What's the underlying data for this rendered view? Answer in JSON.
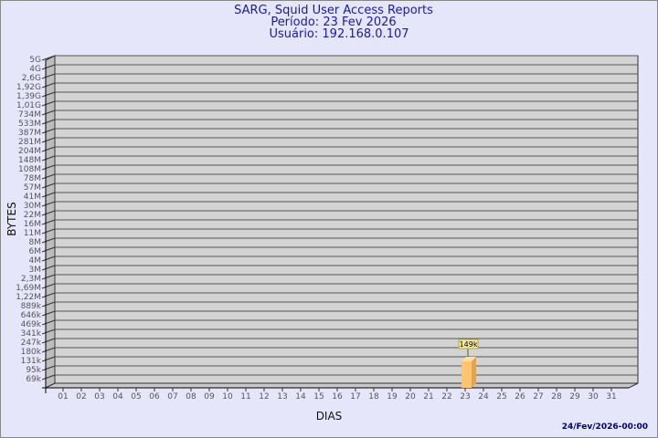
{
  "header": {
    "title": "SARG, Squid User Access Reports",
    "period": "Período: 23 Fev 2026",
    "user": "Usuário: 192.168.0.107"
  },
  "footer": {
    "timestamp": "24/Fev/2026-00:00"
  },
  "colors": {
    "background": "#e6e6fa",
    "plot_wall": "#d3d3d3",
    "bar": "#ffc56e",
    "title": "#1a1aa6"
  },
  "chart_data": {
    "type": "bar",
    "xlabel": "DIAS",
    "ylabel": "BYTES",
    "y_scale": "log",
    "grid": true,
    "categories": [
      "01",
      "02",
      "03",
      "04",
      "05",
      "06",
      "07",
      "08",
      "09",
      "10",
      "11",
      "12",
      "13",
      "14",
      "15",
      "16",
      "17",
      "18",
      "19",
      "20",
      "21",
      "22",
      "23",
      "24",
      "25",
      "26",
      "27",
      "28",
      "29",
      "30",
      "31"
    ],
    "ytick_labels": [
      "5G",
      "4G",
      "2,6G",
      "1,92G",
      "1,39G",
      "1,01G",
      "734M",
      "533M",
      "387M",
      "281M",
      "204M",
      "148M",
      "108M",
      "78M",
      "57M",
      "41M",
      "30M",
      "22M",
      "16M",
      "11M",
      "8M",
      "6M",
      "4M",
      "3M",
      "2,3M",
      "1,69M",
      "1,22M",
      "889k",
      "646k",
      "469k",
      "341k",
      "247k",
      "180k",
      "131k",
      "95k",
      "69k"
    ],
    "bars": [
      {
        "category": "23",
        "value_label": "149k"
      }
    ]
  }
}
